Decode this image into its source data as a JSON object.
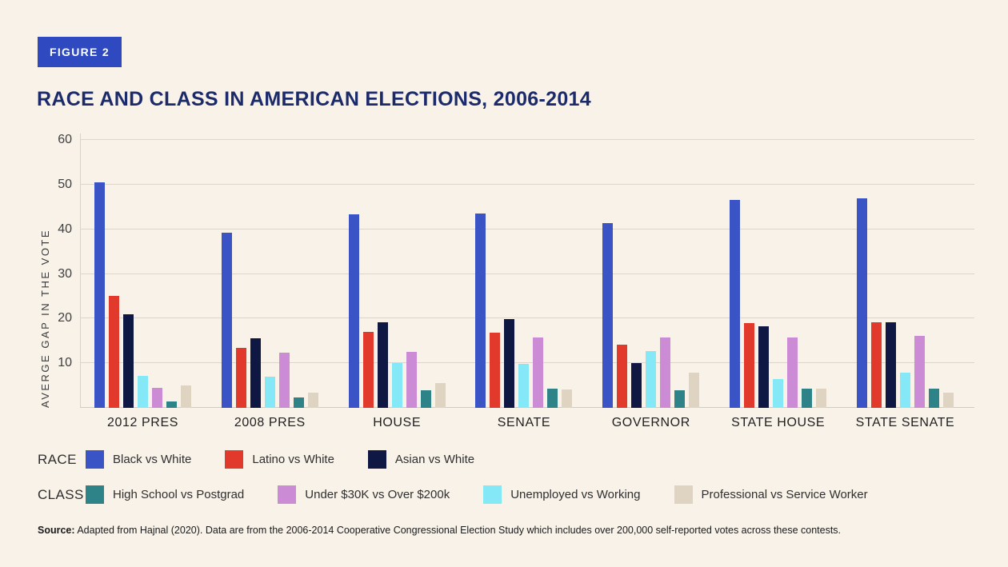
{
  "figure_badge": "FIGURE 2",
  "title": "RACE AND CLASS IN AMERICAN ELECTIONS, 2006-2014",
  "source": {
    "label": "Source:",
    "text": " Adapted from Hajnal (2020). Data are from the 2006-2014 Cooperative Congressional Election Study which includes over 200,000 self-reported votes across these contests."
  },
  "colors": {
    "background": "#F8F2E9",
    "badge_blue": "#2F49C0",
    "title_navy": "#1B2A6B",
    "gridline": "#DCD6CA",
    "black_vs_white": "#3A53C5",
    "latino_vs_white": "#E2392D",
    "asian_vs_white": "#0E1843",
    "high_school_vs_postgrad": "#2E8389",
    "under_30k_vs_over_200k": "#CC8BD5",
    "unemployed_vs_working": "#85E8F6",
    "professional_vs_service": "#DFD4C2"
  },
  "chart_data": {
    "type": "bar",
    "title": "RACE AND CLASS IN AMERICAN ELECTIONS, 2006-2014",
    "xlabel": "",
    "ylabel": "AVERGE GAP IN THE VOTE",
    "ylim": [
      0,
      60
    ],
    "yticks": [
      10,
      20,
      30,
      40,
      50,
      60
    ],
    "grid": true,
    "legend_position": "bottom",
    "categories": [
      "2012 PRES",
      "2008 PRES",
      "HOUSE",
      "SENATE",
      "GOVERNOR",
      "STATE HOUSE",
      "STATE SENATE"
    ],
    "series": [
      {
        "name": "Black vs White",
        "group": "RACE",
        "color": "#3A53C5",
        "values": [
          50.5,
          39.3,
          43.3,
          43.6,
          41.3,
          46.6,
          47.0
        ]
      },
      {
        "name": "Latino vs White",
        "group": "RACE",
        "color": "#E2392D",
        "values": [
          25.1,
          13.5,
          17.0,
          16.8,
          14.1,
          19.0,
          19.2
        ]
      },
      {
        "name": "Asian vs White",
        "group": "RACE",
        "color": "#0E1843",
        "values": [
          21.0,
          15.5,
          19.2,
          19.8,
          10.1,
          18.2,
          19.1
        ]
      },
      {
        "name": "Unemployed vs Working",
        "group": "CLASS",
        "color": "#85E8F6",
        "values": [
          7.1,
          7.0,
          10.0,
          9.8,
          12.7,
          6.4,
          7.9
        ]
      },
      {
        "name": "Under $30K vs Over $200k",
        "group": "CLASS",
        "color": "#CC8BD5",
        "values": [
          4.4,
          12.3,
          12.6,
          15.8,
          15.7,
          15.8,
          16.1
        ]
      },
      {
        "name": "High School vs Postgrad",
        "group": "CLASS",
        "color": "#2E8389",
        "values": [
          1.5,
          2.4,
          4.0,
          4.3,
          4.0,
          4.3,
          4.3
        ]
      },
      {
        "name": "Professional vs Service Worker",
        "group": "CLASS",
        "color": "#DFD4C2",
        "values": [
          5.0,
          3.4,
          5.6,
          4.1,
          7.8,
          4.3,
          3.4
        ]
      }
    ],
    "legend_groups": [
      {
        "label": "RACE",
        "entries": [
          {
            "name": "Black vs White",
            "color": "#3A53C5"
          },
          {
            "name": "Latino vs White",
            "color": "#E2392D"
          },
          {
            "name": "Asian vs White",
            "color": "#0E1843"
          }
        ]
      },
      {
        "label": "CLASS",
        "entries": [
          {
            "name": "High School vs Postgrad",
            "color": "#2E8389"
          },
          {
            "name": "Under $30K vs Over $200k",
            "color": "#CC8BD5"
          },
          {
            "name": "Unemployed vs Working",
            "color": "#85E8F6"
          },
          {
            "name": "Professional vs Service Worker",
            "color": "#DFD4C2"
          }
        ]
      }
    ]
  }
}
